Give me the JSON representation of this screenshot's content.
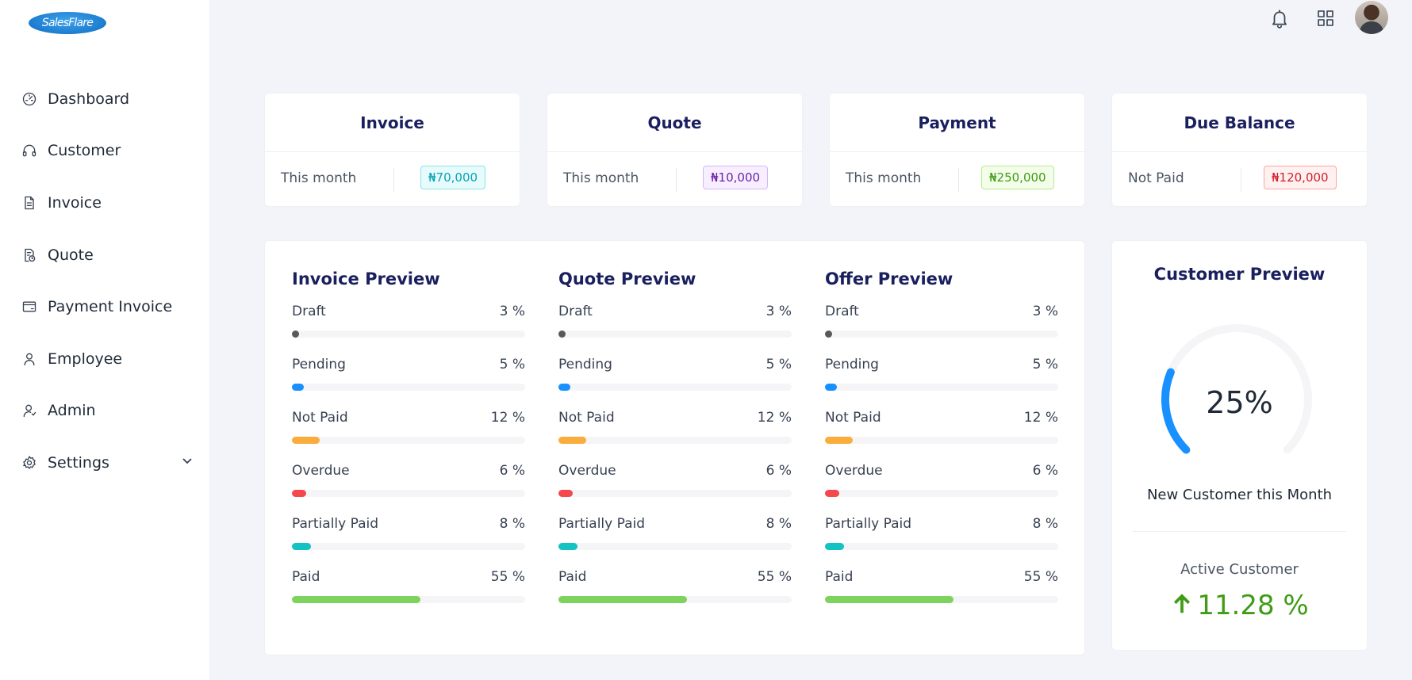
{
  "brand": {
    "logo_text": "SalesFlare"
  },
  "sidebar": {
    "items": [
      {
        "label": "Dashboard",
        "icon": "dashboard-icon"
      },
      {
        "label": "Customer",
        "icon": "headset-icon"
      },
      {
        "label": "Invoice",
        "icon": "file-icon"
      },
      {
        "label": "Quote",
        "icon": "file-clock-icon"
      },
      {
        "label": "Payment Invoice",
        "icon": "credit-card-icon"
      },
      {
        "label": "Employee",
        "icon": "user-icon"
      },
      {
        "label": "Admin",
        "icon": "user-admin-icon"
      },
      {
        "label": "Settings",
        "icon": "gear-icon"
      }
    ]
  },
  "topbar": {
    "icons": [
      "bell-icon",
      "apps-grid-icon",
      "user-avatar"
    ]
  },
  "summary": [
    {
      "title": "Invoice",
      "label": "This month",
      "amount": "₦70,000",
      "color": "cyan"
    },
    {
      "title": "Quote",
      "label": "This month",
      "amount": "₦10,000",
      "color": "purple"
    },
    {
      "title": "Payment",
      "label": "This month",
      "amount": "₦250,000",
      "color": "green"
    },
    {
      "title": "Due Balance",
      "label": "Not Paid",
      "amount": "₦120,000",
      "color": "red"
    }
  ],
  "previews": [
    {
      "title": "Invoice Preview",
      "rows": [
        {
          "label": "Draft",
          "value": "3 %",
          "percent": 3,
          "color": "#595959"
        },
        {
          "label": "Pending",
          "value": "5 %",
          "percent": 5,
          "color": "#1890ff"
        },
        {
          "label": "Not Paid",
          "value": "12 %",
          "percent": 12,
          "color": "#faad3c"
        },
        {
          "label": "Overdue",
          "value": "6 %",
          "percent": 6,
          "color": "#f5484d"
        },
        {
          "label": "Partially Paid",
          "value": "8 %",
          "percent": 8,
          "color": "#13c2c2"
        },
        {
          "label": "Paid",
          "value": "55 %",
          "percent": 55,
          "color": "#7ed35c"
        }
      ]
    },
    {
      "title": "Quote Preview",
      "rows": [
        {
          "label": "Draft",
          "value": "3 %",
          "percent": 3,
          "color": "#595959"
        },
        {
          "label": "Pending",
          "value": "5 %",
          "percent": 5,
          "color": "#1890ff"
        },
        {
          "label": "Not Paid",
          "value": "12 %",
          "percent": 12,
          "color": "#faad3c"
        },
        {
          "label": "Overdue",
          "value": "6 %",
          "percent": 6,
          "color": "#f5484d"
        },
        {
          "label": "Partially Paid",
          "value": "8 %",
          "percent": 8,
          "color": "#13c2c2"
        },
        {
          "label": "Paid",
          "value": "55 %",
          "percent": 55,
          "color": "#7ed35c"
        }
      ]
    },
    {
      "title": "Offer Preview",
      "rows": [
        {
          "label": "Draft",
          "value": "3 %",
          "percent": 3,
          "color": "#595959"
        },
        {
          "label": "Pending",
          "value": "5 %",
          "percent": 5,
          "color": "#1890ff"
        },
        {
          "label": "Not Paid",
          "value": "12 %",
          "percent": 12,
          "color": "#faad3c"
        },
        {
          "label": "Overdue",
          "value": "6 %",
          "percent": 6,
          "color": "#f5484d"
        },
        {
          "label": "Partially Paid",
          "value": "8 %",
          "percent": 8,
          "color": "#13c2c2"
        },
        {
          "label": "Paid",
          "value": "55 %",
          "percent": 55,
          "color": "#7ed35c"
        }
      ]
    }
  ],
  "customer_preview": {
    "title": "Customer Preview",
    "gauge_value": "25%",
    "gauge_percent": 25,
    "gauge_color": "#1890ff",
    "new_label": "New Customer this Month",
    "active_label": "Active Customer",
    "active_value": "11.28 %",
    "active_color": "#3f9c14"
  }
}
